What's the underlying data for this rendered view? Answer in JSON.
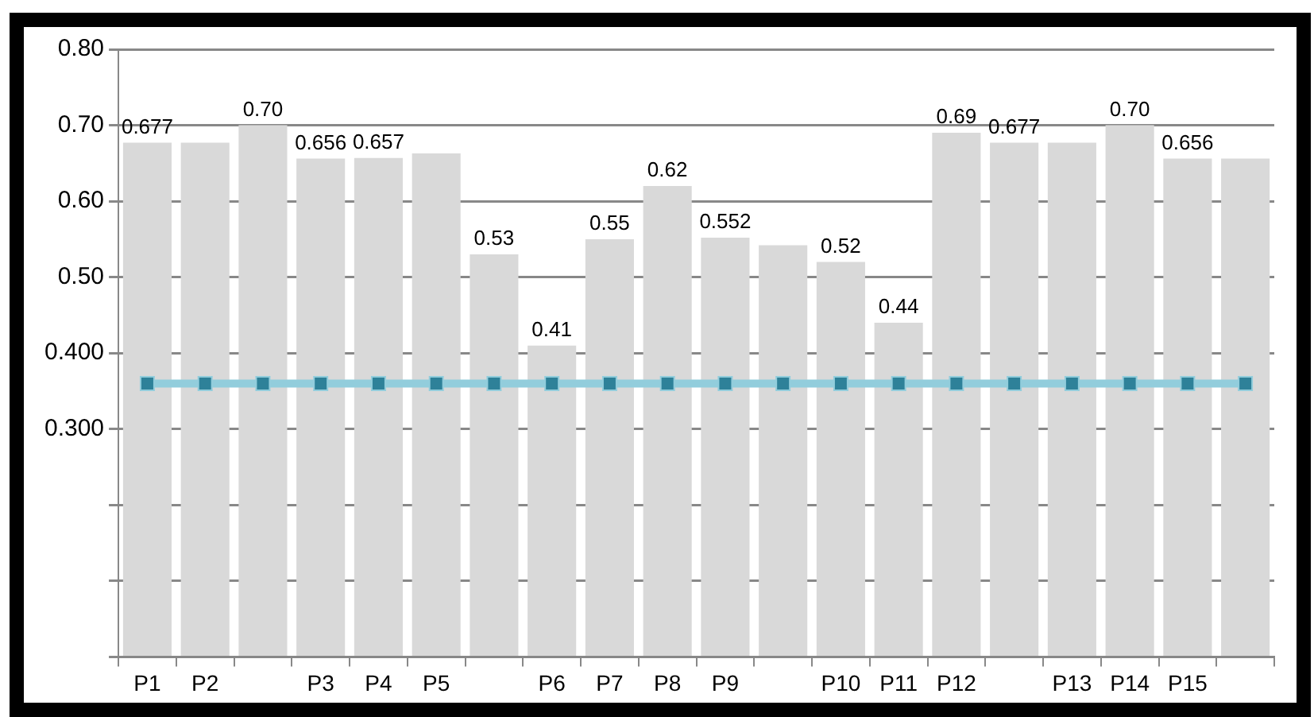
{
  "chart_data": {
    "type": "bar",
    "categories": [
      "P1",
      "P2",
      null,
      "P3",
      "P4",
      "P5",
      null,
      "P6",
      "P7",
      "P8",
      "P9",
      null,
      "P10",
      "P11",
      "P12",
      null,
      "P13",
      "P14",
      "P15",
      null
    ],
    "series": [
      {
        "color": "#d9d9d9",
        "values": [
          0.677,
          0.677,
          0.7,
          0.656,
          0.657,
          0.663,
          0.53,
          0.41,
          0.55,
          0.62,
          0.552,
          0.542,
          0.52,
          0.44,
          0.69,
          0.677,
          0.677,
          0.7,
          0.656,
          0.656
        ],
        "value_labels": [
          "0.677",
          null,
          "0.70",
          "0.656",
          "0.657",
          null,
          "0.53",
          "0.41",
          "0.55",
          "0.62",
          "0.552",
          null,
          "0.52",
          "0.44",
          "0.69",
          "0.677",
          null,
          "0.70",
          "0.656",
          null
        ]
      },
      {
        "type": "line",
        "color": "#2e8199",
        "values": [
          0.36,
          0.36,
          0.36,
          0.36,
          0.36,
          0.36,
          0.36,
          0.36,
          0.36,
          0.36,
          0.36,
          0.36,
          0.36,
          0.36,
          0.36,
          0.36,
          0.36,
          0.36,
          0.36,
          0.36
        ]
      }
    ],
    "ylim": [
      0,
      0.8
    ],
    "yticks": [
      {
        "value": 0,
        "label": null
      },
      {
        "value": 0.1,
        "label": null
      },
      {
        "value": 0.2,
        "label": null
      },
      {
        "value": 0.3,
        "label": "0.300"
      },
      {
        "value": 0.4,
        "label": "0.400"
      },
      {
        "value": 0.5,
        "label": "0.50"
      },
      {
        "value": 0.6,
        "label": "0.60"
      },
      {
        "value": 0.7,
        "label": "0.70"
      },
      {
        "value": 0.8,
        "label": "0.80"
      }
    ],
    "grid": "y",
    "legend": false,
    "marker": "square"
  }
}
